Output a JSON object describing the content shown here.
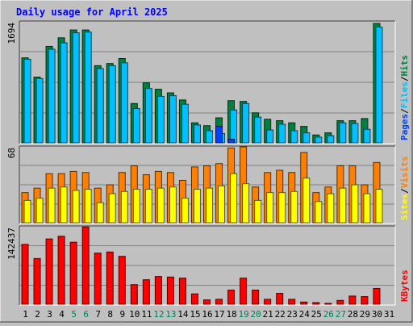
{
  "chart_data": {
    "type": "bar",
    "title": "Daily usage for April 2025",
    "categories": [
      "1",
      "2",
      "3",
      "4",
      "5",
      "6",
      "7",
      "8",
      "9",
      "10",
      "11",
      "12",
      "13",
      "14",
      "15",
      "16",
      "17",
      "18",
      "19",
      "20",
      "21",
      "22",
      "23",
      "24",
      "25",
      "26",
      "27",
      "28",
      "29",
      "30",
      "31"
    ],
    "weekend_categories": [
      "5",
      "6",
      "12",
      "13",
      "19",
      "20",
      "26",
      "27"
    ],
    "panels": [
      {
        "id": "hits-files-pages",
        "max_label": "1694",
        "ylim": [
          0,
          1694
        ],
        "legend": [
          "Pages",
          "Files",
          "Hits"
        ],
        "series": [
          {
            "name": "Hits",
            "color": "#008040",
            "values": [
              1190,
              920,
              1350,
              1470,
              1580,
              1580,
              1080,
              1110,
              1180,
              550,
              840,
              750,
              700,
              600,
              280,
              240,
              350,
              590,
              580,
              420,
              330,
              310,
              280,
              230,
              110,
              140,
              310,
              310,
              340,
              1670,
              0
            ]
          },
          {
            "name": "Files",
            "color": "#00c0ff",
            "values": [
              1170,
              900,
              1310,
              1400,
              1540,
              1550,
              1040,
              1080,
              1120,
              480,
              760,
              650,
              660,
              540,
              250,
              170,
              130,
              460,
              550,
              360,
              180,
              260,
              170,
              140,
              80,
              100,
              280,
              270,
              190,
              1620,
              0
            ]
          },
          {
            "name": "Pages",
            "color": "#0040ff",
            "values": [
              0,
              0,
              0,
              0,
              0,
              0,
              0,
              0,
              0,
              0,
              0,
              0,
              0,
              0,
              0,
              0,
              230,
              50,
              0,
              0,
              0,
              0,
              0,
              0,
              0,
              0,
              0,
              0,
              0,
              0,
              0
            ]
          }
        ]
      },
      {
        "id": "visits-sites",
        "max_label": "68",
        "ylim": [
          0,
          68
        ],
        "legend": [
          "Sites",
          "Visits"
        ],
        "series": [
          {
            "name": "Visits",
            "color": "#ff8000",
            "values": [
              27,
              31,
              44,
              44,
              46,
              45,
              31,
              34,
              45,
              51,
              43,
              46,
              45,
              38,
              50,
              51,
              53,
              67,
              68,
              32,
              45,
              47,
              45,
              63,
              27,
              32,
              51,
              51,
              34,
              54,
              0
            ]
          },
          {
            "name": "Sites",
            "color": "#ffff00",
            "values": [
              20,
              22,
              31,
              32,
              29,
              30,
              18,
              26,
              28,
              30,
              30,
              31,
              32,
              22,
              30,
              31,
              33,
              44,
              35,
              20,
              27,
              27,
              28,
              40,
              19,
              26,
              31,
              34,
              26,
              30,
              0
            ]
          }
        ]
      },
      {
        "id": "kbytes",
        "max_label": "142437",
        "ylim": [
          0,
          142437
        ],
        "legend": [
          "KBytes"
        ],
        "series": [
          {
            "name": "KBytes",
            "color": "#ff0000",
            "values": [
              110000,
              84000,
              120000,
              125000,
              114000,
              142000,
              94000,
              96000,
              88000,
              36000,
              45000,
              51000,
              50000,
              48000,
              19000,
              8000,
              9000,
              26000,
              48000,
              26000,
              9000,
              20000,
              9000,
              4000,
              3000,
              1500,
              7000,
              15000,
              14000,
              29000,
              0
            ]
          }
        ]
      }
    ],
    "colors": {
      "background": "#c0c0c0",
      "plot_background": "#c0c0c0",
      "title": "#0000ff",
      "grid": "#808080",
      "weekday_label": "#000000",
      "weekend_label": "#00805c",
      "legend_separator": "#000000"
    }
  }
}
